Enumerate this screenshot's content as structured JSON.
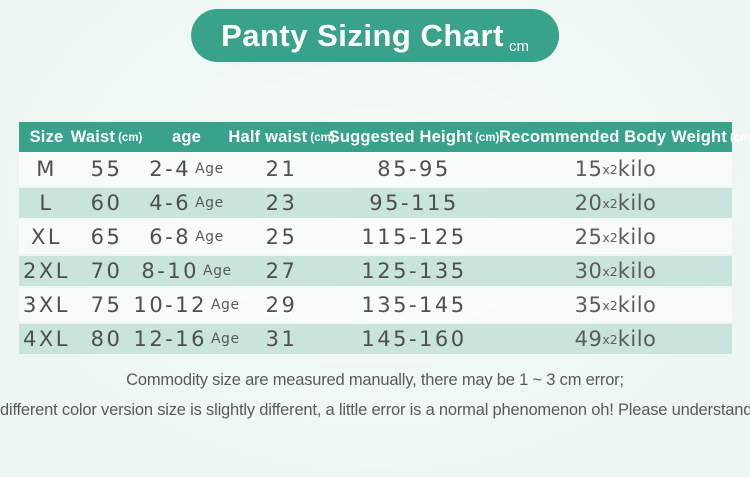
{
  "title": {
    "text": "Panty Sizing Chart",
    "unit": "cm"
  },
  "colors": {
    "accent": "#38a28a",
    "row_alt": "#c8e4dd",
    "page_bg": "#eef6f4",
    "text": "#4f4f4f"
  },
  "table": {
    "headers": [
      {
        "label": "Size",
        "unit": ""
      },
      {
        "label": "Waist",
        "unit": "(cm)"
      },
      {
        "label": "age",
        "unit": ""
      },
      {
        "label": "Half waist",
        "unit": "(cm)"
      },
      {
        "label": "Suggested Height",
        "unit": "(cm)"
      },
      {
        "label": "Recommended Body Weight",
        "unit": "(cm)"
      }
    ],
    "rows": [
      {
        "size": "M",
        "waist": "55",
        "age_range": "2-4",
        "age_unit": "Age",
        "half_waist": "21",
        "height_range": "85-95",
        "weight_value": "15",
        "weight_mult": "x2",
        "weight_unit": "kilo"
      },
      {
        "size": "L",
        "waist": "60",
        "age_range": "4-6",
        "age_unit": "Age",
        "half_waist": "23",
        "height_range": "95-115",
        "weight_value": "20",
        "weight_mult": "x2",
        "weight_unit": "kilo"
      },
      {
        "size": "XL",
        "waist": "65",
        "age_range": "6-8",
        "age_unit": "Age",
        "half_waist": "25",
        "height_range": "115-125",
        "weight_value": "25",
        "weight_mult": "x2",
        "weight_unit": "kilo"
      },
      {
        "size": "2XL",
        "waist": "70",
        "age_range": "8-10",
        "age_unit": "Age",
        "half_waist": "27",
        "height_range": "125-135",
        "weight_value": "30",
        "weight_mult": "x2",
        "weight_unit": "kilo"
      },
      {
        "size": "3XL",
        "waist": "75",
        "age_range": "10-12",
        "age_unit": "Age",
        "half_waist": "29",
        "height_range": "135-145",
        "weight_value": "35",
        "weight_mult": "x2",
        "weight_unit": "kilo"
      },
      {
        "size": "4XL",
        "waist": "80",
        "age_range": "12-16",
        "age_unit": "Age",
        "half_waist": "31",
        "height_range": "145-160",
        "weight_value": "49",
        "weight_mult": "x2",
        "weight_unit": "kilo"
      }
    ]
  },
  "footer": {
    "line1": "Commodity size are measured manually, there may be 1 ~ 3 cm error;",
    "line2": "different color version size is slightly different, a little error is a normal phenomenon oh! Please understand!"
  },
  "chart_data": {
    "type": "table",
    "title": "Panty Sizing Chart",
    "unit": "cm",
    "columns": [
      "Size",
      "Waist (cm)",
      "age",
      "Half waist (cm)",
      "Suggested Height (cm)",
      "Recommended Body Weight (cm)"
    ],
    "rows": [
      [
        "M",
        "55",
        "2-4 Age",
        "21",
        "85-95",
        "15x2kilo"
      ],
      [
        "L",
        "60",
        "4-6 Age",
        "23",
        "95-115",
        "20x2kilo"
      ],
      [
        "XL",
        "65",
        "6-8 Age",
        "25",
        "115-125",
        "25x2kilo"
      ],
      [
        "2XL",
        "70",
        "8-10 Age",
        "27",
        "125-135",
        "30x2kilo"
      ],
      [
        "3XL",
        "75",
        "10-12 Age",
        "29",
        "135-145",
        "35x2kilo"
      ],
      [
        "4XL",
        "80",
        "12-16 Age",
        "31",
        "145-160",
        "49x2kilo"
      ]
    ]
  }
}
